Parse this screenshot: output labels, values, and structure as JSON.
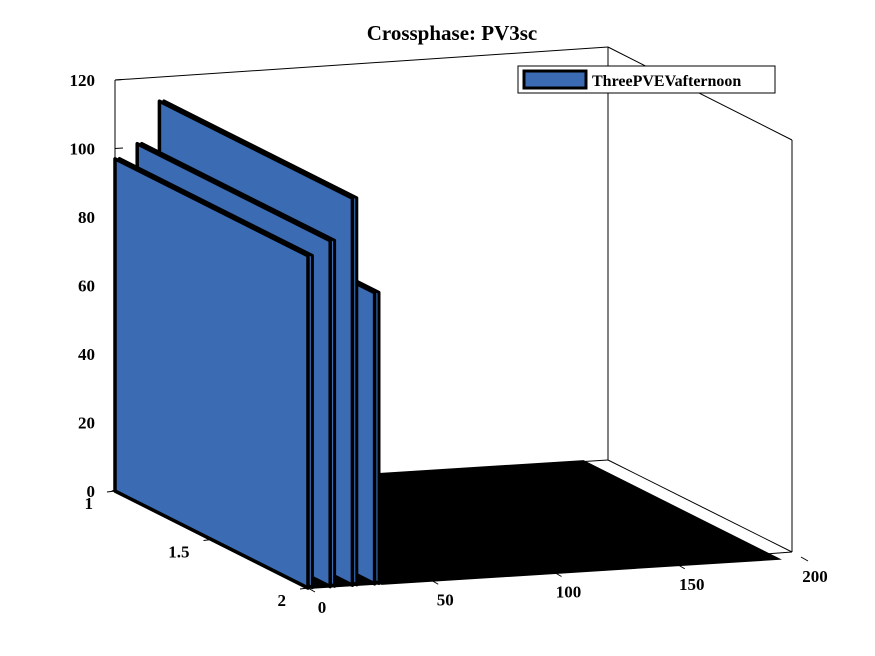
{
  "chart_data": {
    "type": "bar3d",
    "title": "Crossphase: PV3sc",
    "legend": {
      "entries": [
        "ThreePVEVafternoon"
      ],
      "placement": "top-right"
    },
    "x_axis": {
      "ticks": [
        "0",
        "50",
        "100",
        "150",
        "200"
      ],
      "range": [
        0,
        200
      ]
    },
    "y_axis": {
      "ticks": [
        "1",
        "1.5",
        "2"
      ],
      "range": [
        1,
        2
      ]
    },
    "z_axis": {
      "ticks": [
        "0",
        "20",
        "40",
        "60",
        "80",
        "100",
        "120"
      ],
      "range": [
        0,
        120
      ]
    },
    "bar_color": "#3a6bb3",
    "edge_color": "#000000",
    "visible_bars": [
      {
        "x": 0,
        "value": 97
      },
      {
        "x": 9,
        "value": 101
      },
      {
        "x": 18,
        "value": 113
      },
      {
        "x": 27,
        "value": 85
      }
    ],
    "remaining_x_range": [
      30,
      190
    ],
    "remaining_value": 0
  }
}
